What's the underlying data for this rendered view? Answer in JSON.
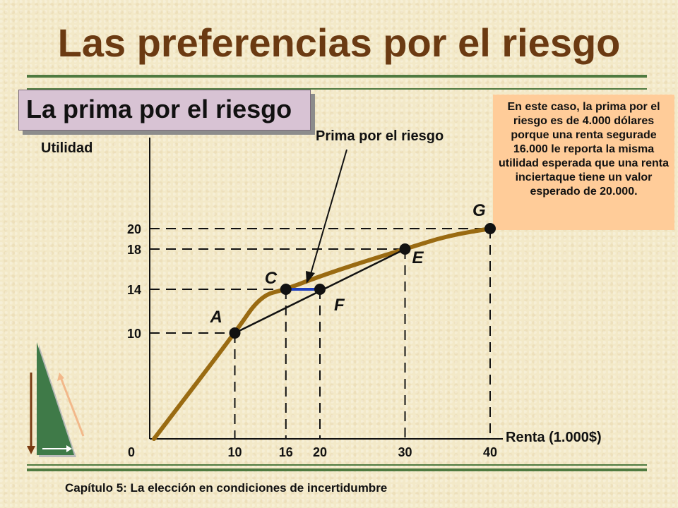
{
  "slide": {
    "title": "Las preferencias por el riesgo",
    "subtitle": "La prima por el riesgo",
    "footer": "Capítulo 5: La elección en condiciones de incertidumbre",
    "note": "En este caso, la prima por el riesgo es de 4.000 dólares porque una renta segurade 16.000 le reporta la misma utilidad esperada que una renta inciertaque tiene un valor esperado de 20.000.",
    "arrow_label": "Prima por el riesgo",
    "colors": {
      "title": "#6b3a12",
      "curve": "#9a6b12",
      "rule": "#4f7a40",
      "premium": "#1f3fbf",
      "note_bg": "#ffcc99"
    },
    "decor_icon": "green-triangle-arrows-icon"
  },
  "chart_data": {
    "type": "line",
    "ylabel": "Utilidad",
    "xlabel": "Renta (1.000$)",
    "x_ticks": [
      "0",
      "10",
      "16",
      "20",
      "30",
      "40"
    ],
    "y_ticks": [
      "10",
      "14",
      "18",
      "20"
    ],
    "xlim": [
      0,
      40
    ],
    "ylim": [
      0,
      25
    ],
    "utility_curve": [
      [
        0.5,
        0
      ],
      [
        10,
        10
      ],
      [
        13,
        13.4
      ],
      [
        16,
        14
      ],
      [
        20,
        15.3
      ],
      [
        25,
        16.7
      ],
      [
        30,
        18
      ],
      [
        35,
        19.3
      ],
      [
        40,
        20
      ]
    ],
    "points": [
      {
        "label": "A",
        "x": 10,
        "y": 10
      },
      {
        "label": "C",
        "x": 16,
        "y": 14
      },
      {
        "label": "F",
        "x": 20,
        "y": 14
      },
      {
        "label": "E",
        "x": 30,
        "y": 18
      },
      {
        "label": "G",
        "x": 40,
        "y": 20
      }
    ],
    "chord": [
      [
        10,
        10
      ],
      [
        30,
        18
      ]
    ],
    "risk_premium": [
      [
        16,
        14
      ],
      [
        20,
        14
      ]
    ]
  }
}
